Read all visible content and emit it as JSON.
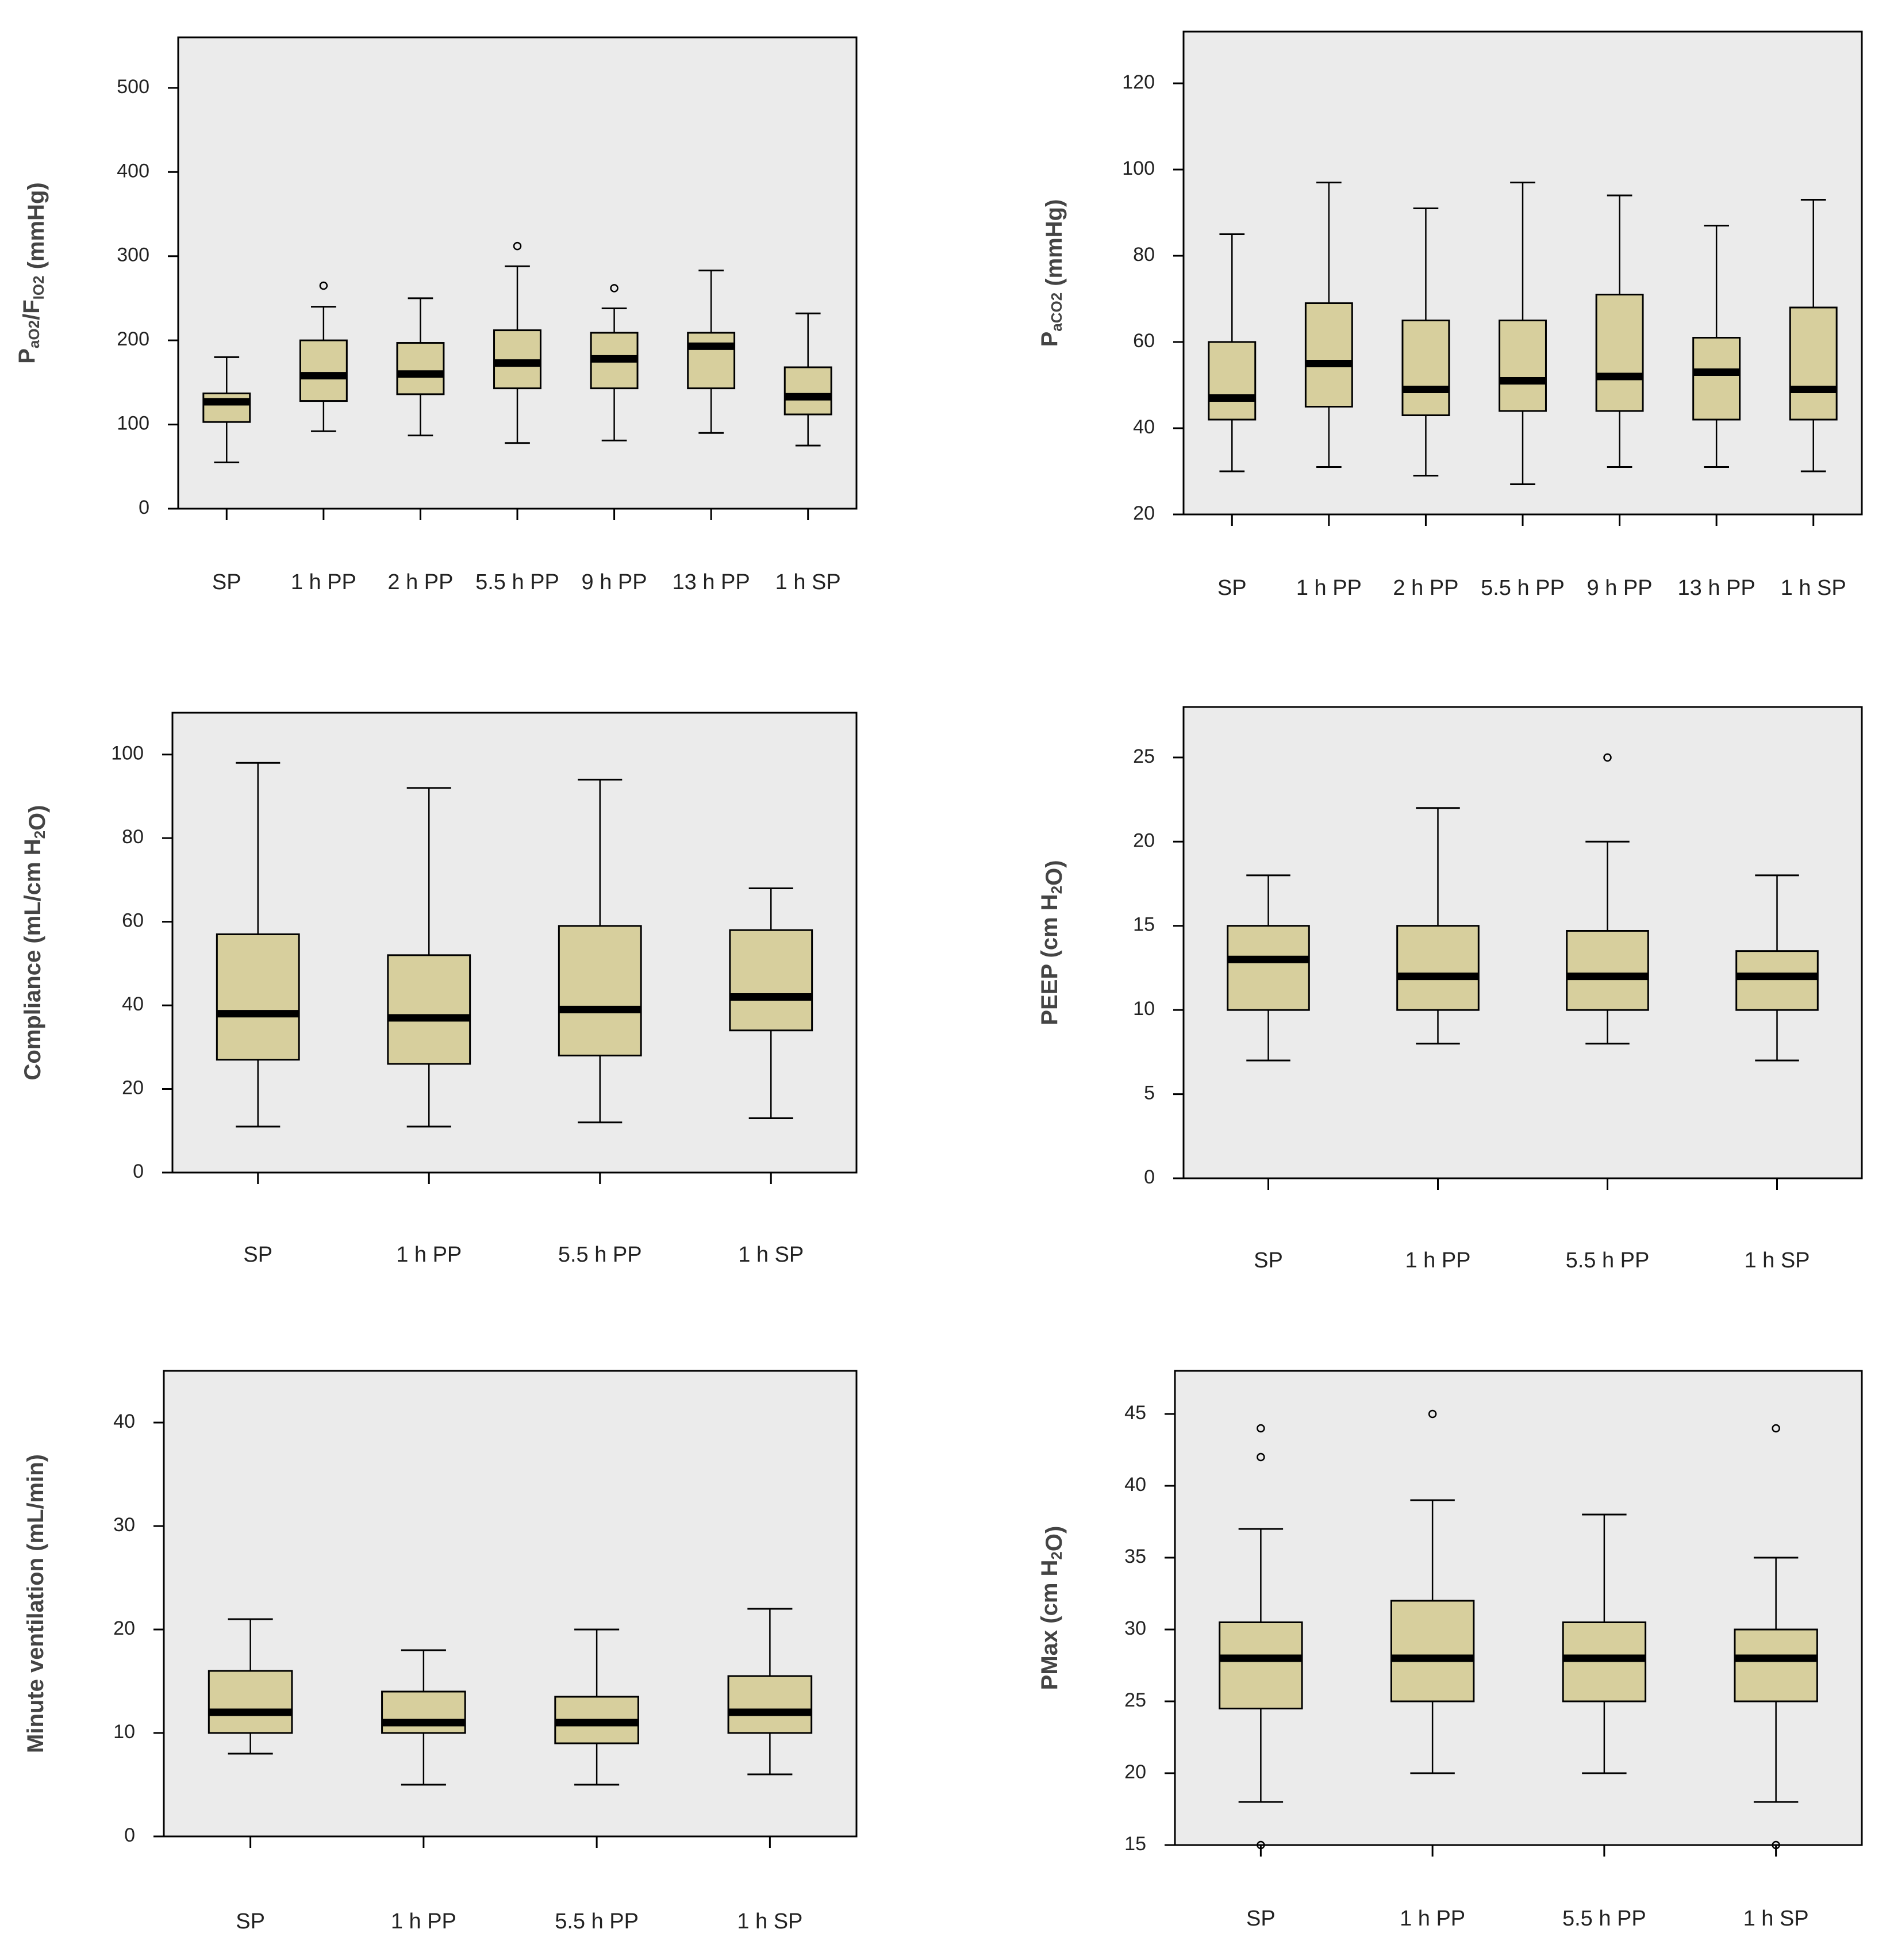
{
  "chart_data": [
    {
      "id": "pao2-fio2",
      "type": "boxplot",
      "ylabel_parts": [
        [
          "P",
          "n"
        ],
        [
          "aO2",
          "s"
        ],
        [
          "/F",
          "n"
        ],
        [
          "IO2",
          "s"
        ],
        [
          " (mmHg)",
          "n"
        ]
      ],
      "ylim": [
        0,
        560
      ],
      "yticks": [
        0,
        100,
        200,
        300,
        400,
        500
      ],
      "categories": [
        "SP",
        "1 h PP",
        "2 h PP",
        "5.5 h PP",
        "9 h PP",
        "13 h PP",
        "1 h SP"
      ],
      "boxes": [
        {
          "min": 55,
          "q1": 103,
          "median": 127,
          "q3": 137,
          "max": 180,
          "outliers": []
        },
        {
          "min": 92,
          "q1": 128,
          "median": 158,
          "q3": 200,
          "max": 240,
          "outliers": [
            265
          ]
        },
        {
          "min": 87,
          "q1": 136,
          "median": 160,
          "q3": 197,
          "max": 250,
          "outliers": []
        },
        {
          "min": 78,
          "q1": 143,
          "median": 173,
          "q3": 212,
          "max": 288,
          "outliers": [
            312
          ]
        },
        {
          "min": 81,
          "q1": 143,
          "median": 178,
          "q3": 209,
          "max": 238,
          "outliers": [
            262
          ]
        },
        {
          "min": 90,
          "q1": 143,
          "median": 193,
          "q3": 209,
          "max": 283,
          "outliers": []
        },
        {
          "min": 75,
          "q1": 112,
          "median": 133,
          "q3": 168,
          "max": 232,
          "outliers": []
        }
      ]
    },
    {
      "id": "paco2",
      "type": "boxplot",
      "ylabel_parts": [
        [
          "P",
          "n"
        ],
        [
          "aCO2",
          "s"
        ],
        [
          " (mmHg)",
          "n"
        ]
      ],
      "ylim": [
        20,
        132
      ],
      "yticks": [
        20,
        40,
        60,
        80,
        100,
        120
      ],
      "categories": [
        "SP",
        "1 h PP",
        "2 h PP",
        "5.5 h PP",
        "9 h PP",
        "13 h PP",
        "1 h SP"
      ],
      "boxes": [
        {
          "min": 30,
          "q1": 42,
          "median": 47,
          "q3": 60,
          "max": 85,
          "outliers": []
        },
        {
          "min": 31,
          "q1": 45,
          "median": 55,
          "q3": 69,
          "max": 97,
          "outliers": []
        },
        {
          "min": 29,
          "q1": 43,
          "median": 49,
          "q3": 65,
          "max": 91,
          "outliers": []
        },
        {
          "min": 27,
          "q1": 44,
          "median": 51,
          "q3": 65,
          "max": 97,
          "outliers": []
        },
        {
          "min": 31,
          "q1": 44,
          "median": 52,
          "q3": 71,
          "max": 94,
          "outliers": []
        },
        {
          "min": 31,
          "q1": 42,
          "median": 53,
          "q3": 61,
          "max": 87,
          "outliers": []
        },
        {
          "min": 30,
          "q1": 42,
          "median": 49,
          "q3": 68,
          "max": 93,
          "outliers": []
        }
      ]
    },
    {
      "id": "compliance",
      "type": "boxplot",
      "ylabel_parts": [
        [
          "Compliance (mL/cm H",
          "n"
        ],
        [
          "2",
          "s"
        ],
        [
          "O)",
          "n"
        ]
      ],
      "ylim": [
        0,
        110
      ],
      "yticks": [
        0,
        20,
        40,
        60,
        80,
        100
      ],
      "categories": [
        "SP",
        "1 h PP",
        "5.5 h PP",
        "1 h SP"
      ],
      "boxes": [
        {
          "min": 11,
          "q1": 27,
          "median": 38,
          "q3": 57,
          "max": 98,
          "outliers": []
        },
        {
          "min": 11,
          "q1": 26,
          "median": 37,
          "q3": 52,
          "max": 92,
          "outliers": []
        },
        {
          "min": 12,
          "q1": 28,
          "median": 39,
          "q3": 59,
          "max": 94,
          "outliers": []
        },
        {
          "min": 13,
          "q1": 34,
          "median": 42,
          "q3": 58,
          "max": 68,
          "outliers": []
        }
      ]
    },
    {
      "id": "peep",
      "type": "boxplot",
      "ylabel_parts": [
        [
          "PEEP (cm H",
          "n"
        ],
        [
          "2",
          "s"
        ],
        [
          "O)",
          "n"
        ]
      ],
      "ylim": [
        0,
        28
      ],
      "yticks": [
        0,
        5,
        10,
        15,
        20,
        25
      ],
      "categories": [
        "SP",
        "1 h PP",
        "5.5 h PP",
        "1 h SP"
      ],
      "boxes": [
        {
          "min": 7,
          "q1": 10,
          "median": 13,
          "q3": 15,
          "max": 18,
          "outliers": []
        },
        {
          "min": 8,
          "q1": 10,
          "median": 12,
          "q3": 15,
          "max": 22,
          "outliers": []
        },
        {
          "min": 8,
          "q1": 10,
          "median": 12,
          "q3": 14.7,
          "max": 20,
          "outliers": [
            25
          ]
        },
        {
          "min": 7,
          "q1": 10,
          "median": 12,
          "q3": 13.5,
          "max": 18,
          "outliers": []
        }
      ]
    },
    {
      "id": "minute-ventilation",
      "type": "boxplot",
      "ylabel_parts": [
        [
          "Minute ventilation (mL/min)",
          "n"
        ]
      ],
      "ylim": [
        0,
        45
      ],
      "yticks": [
        0,
        10,
        20,
        30,
        40
      ],
      "categories": [
        "SP",
        "1 h PP",
        "5.5 h PP",
        "1 h SP"
      ],
      "boxes": [
        {
          "min": 8,
          "q1": 10,
          "median": 12,
          "q3": 16,
          "max": 21,
          "outliers": []
        },
        {
          "min": 5,
          "q1": 10,
          "median": 11,
          "q3": 14,
          "max": 18,
          "outliers": []
        },
        {
          "min": 5,
          "q1": 9,
          "median": 11,
          "q3": 13.5,
          "max": 20,
          "outliers": []
        },
        {
          "min": 6,
          "q1": 10,
          "median": 12,
          "q3": 15.5,
          "max": 22,
          "outliers": []
        }
      ]
    },
    {
      "id": "pmax",
      "type": "boxplot",
      "ylabel_parts": [
        [
          "PMax (cm H",
          "n"
        ],
        [
          "2",
          "s"
        ],
        [
          "O)",
          "n"
        ]
      ],
      "ylim": [
        15,
        48
      ],
      "yticks": [
        15,
        20,
        25,
        30,
        35,
        40,
        45
      ],
      "categories": [
        "SP",
        "1 h PP",
        "5.5 h PP",
        "1 h SP"
      ],
      "boxes": [
        {
          "min": 18,
          "q1": 24.5,
          "median": 28,
          "q3": 30.5,
          "max": 37,
          "outliers": [
            15,
            42,
            44
          ]
        },
        {
          "min": 20,
          "q1": 25,
          "median": 28,
          "q3": 32,
          "max": 39,
          "outliers": [
            45
          ]
        },
        {
          "min": 20,
          "q1": 25,
          "median": 28,
          "q3": 30.5,
          "max": 38,
          "outliers": []
        },
        {
          "min": 18,
          "q1": 25,
          "median": 28,
          "q3": 30,
          "max": 35,
          "outliers": [
            15,
            44
          ]
        }
      ]
    }
  ]
}
